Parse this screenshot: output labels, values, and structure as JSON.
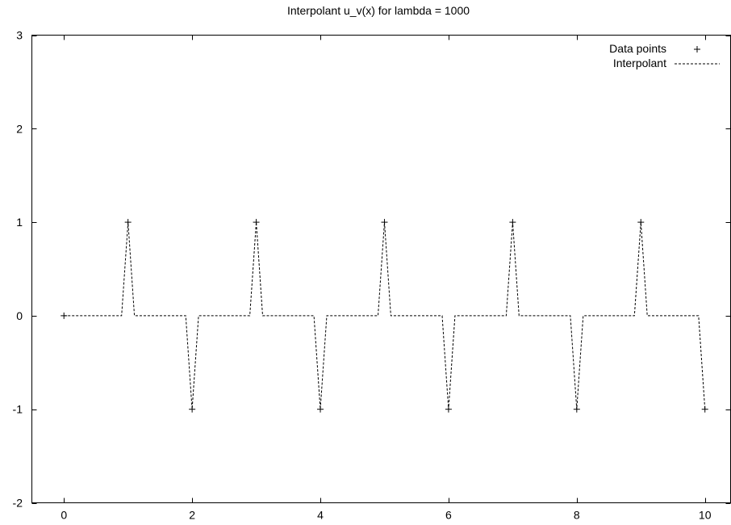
{
  "chart_data": {
    "type": "line",
    "title": "Interpolant u_v(x) for lambda = 1000",
    "xlabel": "",
    "ylabel": "",
    "xlim": [
      -0.5,
      10.4
    ],
    "ylim": [
      -2,
      3
    ],
    "xticks": [
      "0",
      "2",
      "4",
      "6",
      "8",
      "10"
    ],
    "yticks": [
      "-2",
      "-1",
      "0",
      "1",
      "2",
      "3"
    ],
    "grid": false,
    "legend_position": "top-right",
    "series": [
      {
        "name": "Data points",
        "style": "points-plus",
        "color": "#000000",
        "x": [
          0,
          1,
          2,
          3,
          4,
          5,
          6,
          7,
          8,
          9,
          10
        ],
        "y": [
          0,
          1,
          -1,
          1,
          -1,
          1,
          -1,
          1,
          -1,
          1,
          -1
        ]
      },
      {
        "name": "Interpolant",
        "style": "dashed-line",
        "color": "#000000",
        "x": [
          0,
          0.9,
          1,
          1.1,
          1.9,
          2,
          2.1,
          2.9,
          3,
          3.1,
          3.9,
          4,
          4.1,
          4.9,
          5,
          5.1,
          5.9,
          6,
          6.1,
          6.9,
          7,
          7.1,
          7.9,
          8,
          8.1,
          8.9,
          9,
          9.1,
          9.9,
          10
        ],
        "y": [
          0,
          0,
          1,
          0,
          0,
          -1,
          0,
          0,
          1,
          0,
          0,
          -1,
          0,
          0,
          1,
          0,
          0,
          -1,
          0,
          0,
          1,
          0,
          0,
          -1,
          0,
          0,
          1,
          0,
          0,
          -1
        ]
      }
    ]
  }
}
